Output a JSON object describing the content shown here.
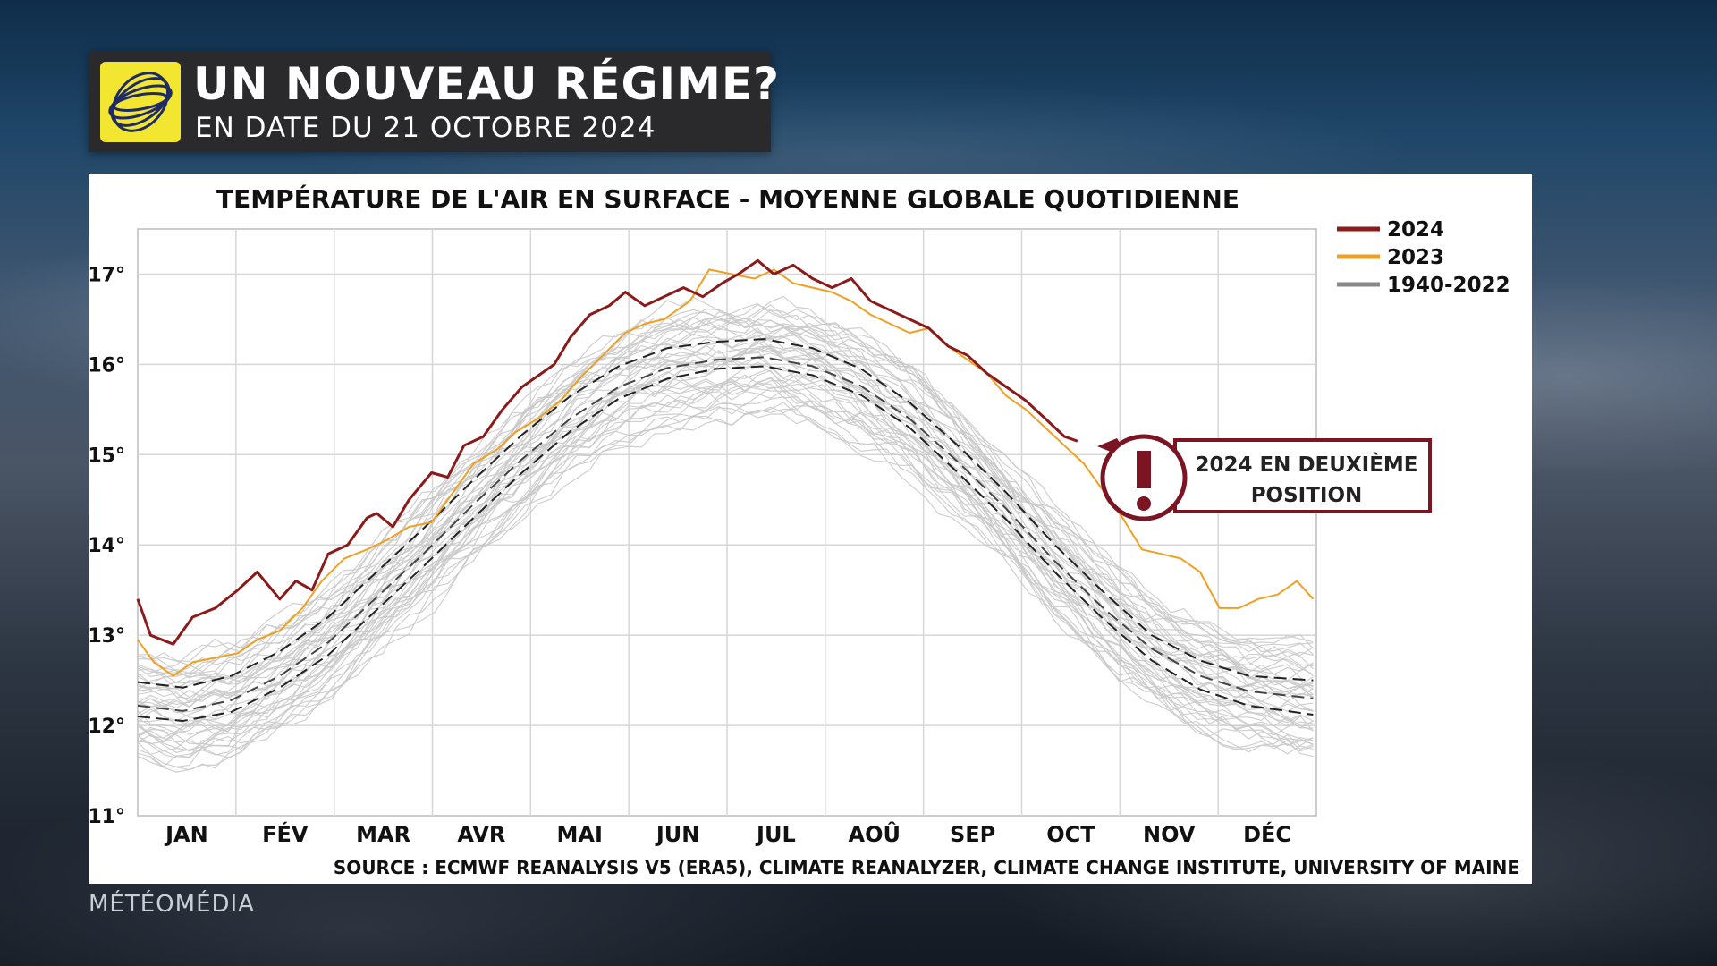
{
  "header": {
    "title": "UN NOUVEAU RÉGIME?",
    "subtitle": "EN DATE DU 21 OCTOBRE 2024",
    "logo_icon": "globe-swirl-icon",
    "logo_color": "#f2e631"
  },
  "brand": "MÉTÉOMÉDIA",
  "callout": {
    "line1": "2024 EN DEUXIÈME",
    "line2": "POSITION",
    "icon": "exclamation-icon",
    "color": "#7b1523"
  },
  "chart_data": {
    "type": "line",
    "title": "TEMPÉRATURE DE L'AIR EN SURFACE - MOYENNE GLOBALE QUOTIDIENNE",
    "source": "SOURCE : ECMWF REANALYSIS V5 (ERA5), CLIMATE REANALYZER, CLIMATE CHANGE INSTITUTE, UNIVERSITY OF MAINE",
    "xlabel": "",
    "ylabel": "",
    "x_unit": "day of year",
    "xlim": [
      1,
      366
    ],
    "ylim": [
      11,
      17.5
    ],
    "grid": true,
    "legend_position": "top-right",
    "months": [
      "JAN",
      "FÉV",
      "MAR",
      "AVR",
      "MAI",
      "JUN",
      "JUL",
      "AOÛ",
      "SEP",
      "OCT",
      "NOV",
      "DÉC"
    ],
    "y_ticks": [
      {
        "value": 11,
        "label": "11°"
      },
      {
        "value": 12,
        "label": "12°"
      },
      {
        "value": 13,
        "label": "13°"
      },
      {
        "value": 14,
        "label": "14°"
      },
      {
        "value": 15,
        "label": "15°"
      },
      {
        "value": 16,
        "label": "16°"
      },
      {
        "value": 17,
        "label": "17°"
      }
    ],
    "series": [
      {
        "name": "2024",
        "color": "#8b1a1a",
        "width": 3,
        "x": [
          1,
          5,
          12,
          18,
          25,
          32,
          38,
          45,
          50,
          55,
          60,
          66,
          72,
          75,
          80,
          85,
          92,
          97,
          102,
          108,
          114,
          120,
          126,
          130,
          135,
          141,
          147,
          152,
          158,
          164,
          170,
          176,
          182,
          187,
          193,
          198,
          204,
          210,
          216,
          222,
          228,
          234,
          240,
          246,
          252,
          258,
          264,
          270,
          276,
          282,
          288,
          292
        ],
        "y": [
          13.4,
          13.0,
          12.9,
          13.2,
          13.3,
          13.5,
          13.7,
          13.4,
          13.6,
          13.5,
          13.9,
          14.0,
          14.3,
          14.35,
          14.2,
          14.5,
          14.8,
          14.75,
          15.1,
          15.2,
          15.5,
          15.75,
          15.9,
          16.0,
          16.3,
          16.55,
          16.65,
          16.8,
          16.65,
          16.75,
          16.85,
          16.75,
          16.9,
          17.0,
          17.15,
          17.0,
          17.1,
          16.95,
          16.85,
          16.95,
          16.7,
          16.6,
          16.5,
          16.4,
          16.2,
          16.1,
          15.9,
          15.75,
          15.6,
          15.4,
          15.2,
          15.15
        ]
      },
      {
        "name": "2023",
        "color": "#f0a020",
        "width": 2,
        "x": [
          1,
          6,
          12,
          18,
          25,
          32,
          38,
          45,
          52,
          58,
          65,
          72,
          78,
          85,
          92,
          98,
          105,
          112,
          118,
          125,
          132,
          138,
          145,
          152,
          158,
          164,
          172,
          178,
          185,
          192,
          198,
          204,
          210,
          216,
          222,
          228,
          234,
          240,
          246,
          252,
          258,
          264,
          270,
          276,
          282,
          288,
          294,
          300,
          306,
          312,
          318,
          324,
          330,
          336,
          342,
          348,
          354,
          360,
          365
        ],
        "y": [
          12.95,
          12.7,
          12.55,
          12.7,
          12.75,
          12.8,
          12.95,
          13.05,
          13.3,
          13.6,
          13.85,
          13.95,
          14.05,
          14.2,
          14.25,
          14.55,
          14.9,
          15.05,
          15.25,
          15.4,
          15.6,
          15.85,
          16.1,
          16.35,
          16.45,
          16.5,
          16.7,
          17.05,
          17.0,
          16.95,
          17.05,
          16.9,
          16.85,
          16.8,
          16.7,
          16.55,
          16.45,
          16.35,
          16.4,
          16.2,
          16.05,
          15.9,
          15.65,
          15.5,
          15.3,
          15.1,
          14.9,
          14.6,
          14.3,
          13.95,
          13.9,
          13.85,
          13.7,
          13.3,
          13.3,
          13.4,
          13.45,
          13.6,
          13.4
        ]
      },
      {
        "name": "1940-2022",
        "color": "#c8c8c8",
        "width": 1.2,
        "range_band": true
      },
      {
        "name": "mean-upper",
        "style": "dashed",
        "color": "#222222",
        "width": 2,
        "x": [
          1,
          15,
          30,
          45,
          60,
          75,
          90,
          105,
          120,
          135,
          150,
          165,
          180,
          195,
          210,
          225,
          240,
          255,
          270,
          285,
          300,
          315,
          330,
          345,
          365
        ],
        "y": [
          12.48,
          12.42,
          12.55,
          12.82,
          13.2,
          13.7,
          14.2,
          14.72,
          15.22,
          15.65,
          15.98,
          16.18,
          16.25,
          16.28,
          16.18,
          15.95,
          15.58,
          15.1,
          14.58,
          14.0,
          13.48,
          13.0,
          12.72,
          12.55,
          12.5
        ]
      },
      {
        "name": "mean",
        "style": "dashed",
        "color": "#444444",
        "width": 2,
        "x": [
          1,
          15,
          30,
          45,
          60,
          75,
          90,
          105,
          120,
          135,
          150,
          165,
          180,
          195,
          210,
          225,
          240,
          255,
          270,
          285,
          300,
          315,
          330,
          345,
          365
        ],
        "y": [
          12.22,
          12.16,
          12.28,
          12.55,
          12.92,
          13.42,
          13.92,
          14.45,
          14.95,
          15.4,
          15.75,
          15.96,
          16.05,
          16.08,
          15.98,
          15.76,
          15.4,
          14.92,
          14.4,
          13.82,
          13.3,
          12.85,
          12.55,
          12.38,
          12.3
        ]
      },
      {
        "name": "mean-lower",
        "style": "dashed",
        "color": "#222222",
        "width": 2,
        "x": [
          1,
          15,
          30,
          45,
          60,
          75,
          90,
          105,
          120,
          135,
          150,
          165,
          180,
          195,
          210,
          225,
          240,
          255,
          270,
          285,
          300,
          315,
          330,
          345,
          365
        ],
        "y": [
          12.1,
          12.05,
          12.15,
          12.42,
          12.78,
          13.28,
          13.78,
          14.3,
          14.8,
          15.26,
          15.62,
          15.84,
          15.95,
          15.98,
          15.88,
          15.66,
          15.3,
          14.8,
          14.28,
          13.7,
          13.18,
          12.72,
          12.4,
          12.22,
          12.12
        ]
      }
    ],
    "legend": [
      {
        "label": "2024",
        "color": "#8b1a1a"
      },
      {
        "label": "2023",
        "color": "#f0a020"
      },
      {
        "label": "1940-2022",
        "color": "#888888"
      }
    ]
  }
}
